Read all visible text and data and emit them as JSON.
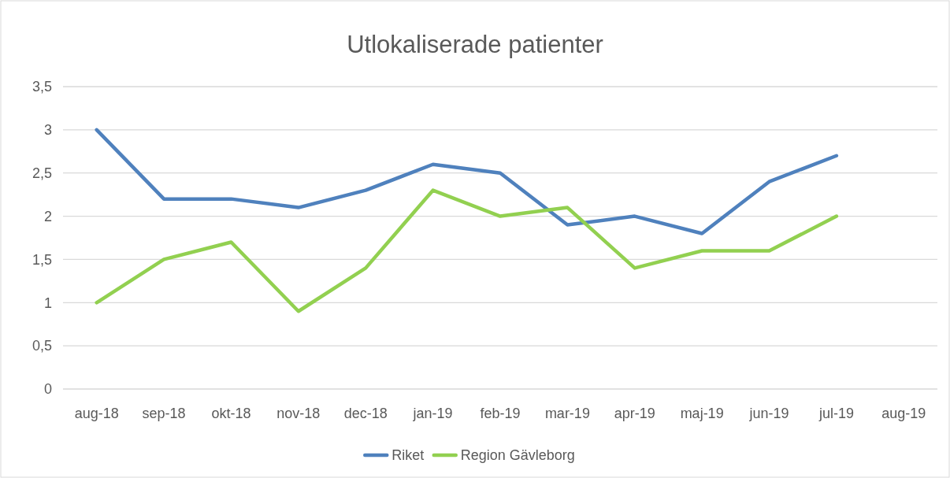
{
  "chart_data": {
    "type": "line",
    "title": "Utlokaliserade patienter",
    "categories": [
      "aug-18",
      "sep-18",
      "okt-18",
      "nov-18",
      "dec-18",
      "jan-19",
      "feb-19",
      "mar-19",
      "apr-19",
      "maj-19",
      "jun-19",
      "jul-19",
      "aug-19"
    ],
    "series": [
      {
        "name": "Riket",
        "color": "#4f81bd",
        "values": [
          3,
          2.2,
          2.2,
          2.1,
          2.3,
          2.6,
          2.5,
          1.9,
          2.0,
          1.8,
          2.4,
          2.7,
          null
        ]
      },
      {
        "name": "Region Gävleborg",
        "color": "#92d050",
        "values": [
          1,
          1.5,
          1.7,
          0.9,
          1.4,
          2.3,
          2.0,
          2.1,
          1.4,
          1.6,
          1.6,
          2.0,
          null
        ]
      }
    ],
    "ylim": [
      0,
      3.5
    ],
    "yticks": [
      0,
      {
        "value": 0.5,
        "label": "0,5"
      },
      1,
      {
        "value": 1.5,
        "label": "1,5"
      },
      2,
      {
        "value": 2.5,
        "label": "2,5"
      },
      3,
      {
        "value": 3.5,
        "label": "3,5"
      }
    ],
    "grid": "y",
    "legend": "bottom",
    "marker": "none",
    "line_style": "solid"
  }
}
